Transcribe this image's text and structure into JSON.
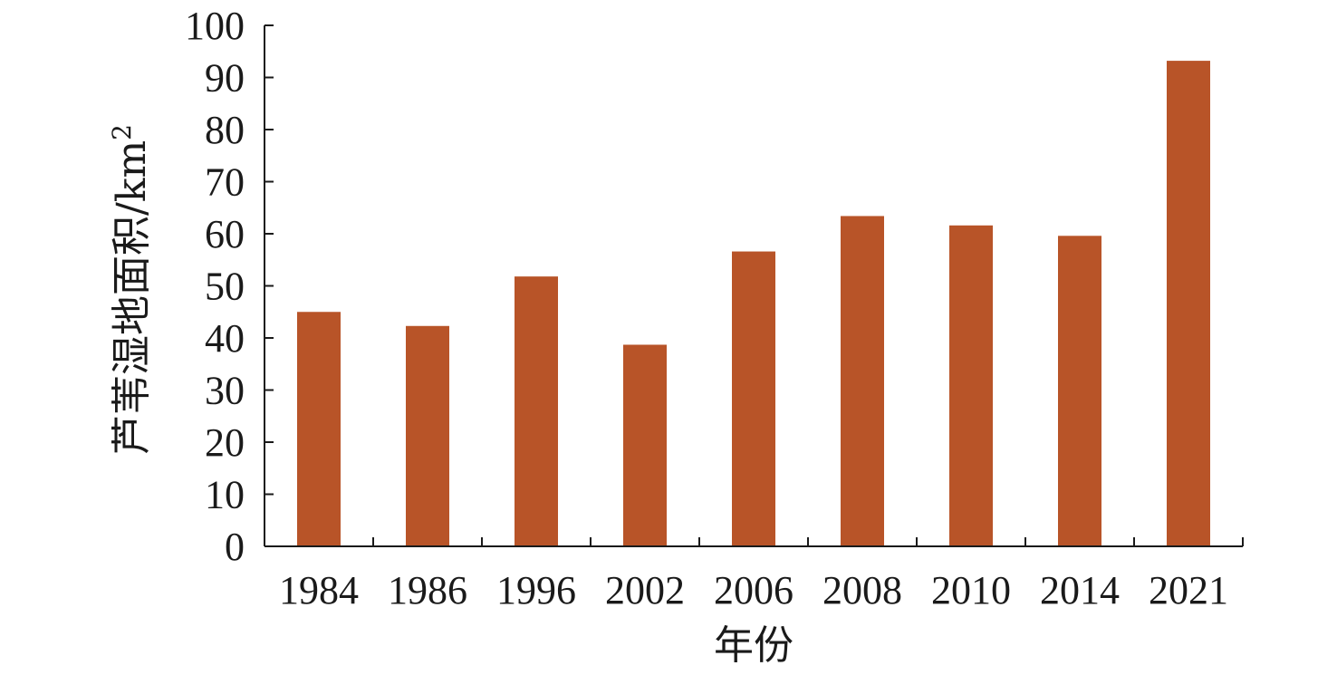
{
  "chart_data": {
    "type": "bar",
    "categories": [
      "1984",
      "1986",
      "1996",
      "2002",
      "2006",
      "2008",
      "2010",
      "2014",
      "2021"
    ],
    "values": [
      45,
      42.3,
      51.8,
      38.7,
      56.6,
      63.4,
      61.6,
      59.6,
      93.2
    ],
    "title": "",
    "xlabel": "年份",
    "ylabel": "芦苇湿地面积/km",
    "ylabel_superscript": "2",
    "ylim": [
      0,
      100
    ],
    "yticks": [
      0,
      10,
      20,
      30,
      40,
      50,
      60,
      70,
      80,
      90,
      100
    ],
    "grid": false,
    "legend": "none",
    "bar_color": "#b85428"
  }
}
